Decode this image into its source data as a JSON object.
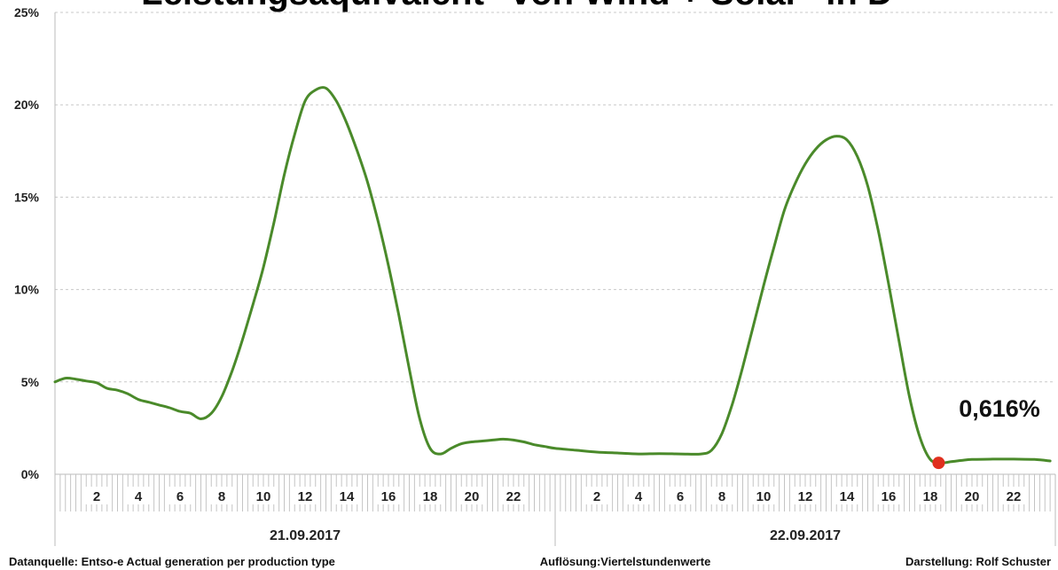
{
  "chart_data": {
    "type": "line",
    "title": "Leistungsäquivalent \"von Wind + Solar\" in D",
    "xlabel": "",
    "ylabel": "",
    "ylim": [
      0,
      25
    ],
    "yticks": [
      "0%",
      "5%",
      "10%",
      "15%",
      "20%",
      "25%"
    ],
    "grid": true,
    "hour_ticks": [
      "2",
      "4",
      "6",
      "8",
      "10",
      "12",
      "14",
      "16",
      "18",
      "20",
      "22"
    ],
    "dates": [
      "21.09.2017",
      "22.09.2017"
    ],
    "line_color": "#4a8a2a",
    "marker_color": "#e0301e",
    "series": [
      {
        "points": [
          [
            0,
            5.0
          ],
          [
            0.5,
            5.2
          ],
          [
            1,
            5.15
          ],
          [
            1.5,
            5.05
          ],
          [
            2,
            4.95
          ],
          [
            2.5,
            4.65
          ],
          [
            3,
            4.55
          ],
          [
            3.5,
            4.35
          ],
          [
            4,
            4.05
          ],
          [
            4.5,
            3.9
          ],
          [
            5,
            3.75
          ],
          [
            5.5,
            3.6
          ],
          [
            6,
            3.4
          ],
          [
            6.5,
            3.3
          ],
          [
            7,
            3.0
          ],
          [
            7.5,
            3.3
          ],
          [
            8,
            4.2
          ],
          [
            8.5,
            5.6
          ],
          [
            9,
            7.3
          ],
          [
            9.5,
            9.2
          ],
          [
            10,
            11.2
          ],
          [
            10.5,
            13.6
          ],
          [
            11,
            16.2
          ],
          [
            11.5,
            18.4
          ],
          [
            12,
            20.2
          ],
          [
            12.5,
            20.8
          ],
          [
            13,
            20.9
          ],
          [
            13.5,
            20.2
          ],
          [
            14,
            19.0
          ],
          [
            14.5,
            17.5
          ],
          [
            15,
            15.8
          ],
          [
            15.5,
            13.7
          ],
          [
            16,
            11.3
          ],
          [
            16.5,
            8.6
          ],
          [
            17,
            5.7
          ],
          [
            17.5,
            3.0
          ],
          [
            18,
            1.4
          ],
          [
            18.5,
            1.1
          ],
          [
            19,
            1.4
          ],
          [
            19.5,
            1.65
          ],
          [
            20,
            1.75
          ],
          [
            20.5,
            1.8
          ],
          [
            21,
            1.85
          ],
          [
            21.5,
            1.9
          ],
          [
            22,
            1.85
          ],
          [
            22.5,
            1.75
          ],
          [
            23,
            1.6
          ],
          [
            23.5,
            1.5
          ],
          [
            24,
            1.4
          ],
          [
            25,
            1.3
          ],
          [
            26,
            1.2
          ],
          [
            27,
            1.15
          ],
          [
            28,
            1.1
          ],
          [
            29,
            1.12
          ],
          [
            30,
            1.1
          ],
          [
            31,
            1.1
          ],
          [
            31.5,
            1.3
          ],
          [
            32,
            2.2
          ],
          [
            32.5,
            3.8
          ],
          [
            33,
            5.8
          ],
          [
            33.5,
            8.0
          ],
          [
            34,
            10.2
          ],
          [
            34.5,
            12.3
          ],
          [
            35,
            14.3
          ],
          [
            35.5,
            15.7
          ],
          [
            36,
            16.8
          ],
          [
            36.5,
            17.6
          ],
          [
            37,
            18.1
          ],
          [
            37.5,
            18.3
          ],
          [
            38,
            18.1
          ],
          [
            38.5,
            17.2
          ],
          [
            39,
            15.6
          ],
          [
            39.5,
            13.2
          ],
          [
            40,
            10.3
          ],
          [
            40.5,
            7.2
          ],
          [
            41,
            4.2
          ],
          [
            41.5,
            2.0
          ],
          [
            42,
            0.8
          ],
          [
            42.5,
            0.62
          ],
          [
            43,
            0.68
          ],
          [
            43.5,
            0.75
          ],
          [
            44,
            0.8
          ],
          [
            45,
            0.82
          ],
          [
            46,
            0.82
          ],
          [
            47,
            0.8
          ],
          [
            47.75,
            0.72
          ]
        ]
      }
    ],
    "highlight": {
      "x": 42.4,
      "y": 0.616,
      "label": "0,616%"
    }
  },
  "footer": {
    "source": "Datanquelle: Entso-e  Actual generation per production type",
    "resolution": "Auflösung:Viertelstundenwerte",
    "author": "Darstellung:  Rolf Schuster"
  }
}
